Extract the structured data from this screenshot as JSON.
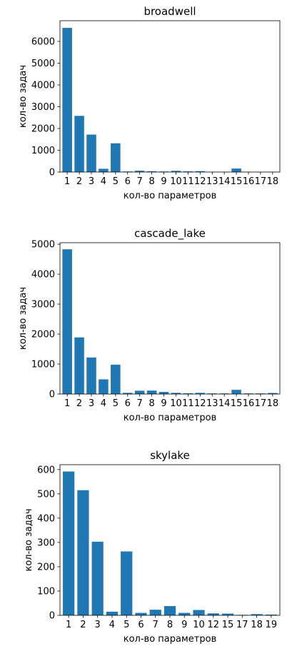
{
  "chart_data": [
    {
      "type": "bar",
      "title": "broadwell",
      "xlabel": "кол-во параметров",
      "ylabel": "кол-во задач",
      "ylim": [
        0,
        6950
      ],
      "yticks": [
        0,
        1000,
        2000,
        3000,
        4000,
        5000,
        6000
      ],
      "categories": [
        "1",
        "2",
        "3",
        "4",
        "5",
        "6",
        "7",
        "8",
        "9",
        "10",
        "11",
        "12",
        "13",
        "14",
        "15",
        "16",
        "17",
        "18"
      ],
      "values": [
        6620,
        2580,
        1720,
        150,
        1320,
        25,
        60,
        35,
        25,
        55,
        30,
        40,
        5,
        5,
        160,
        5,
        5,
        5
      ],
      "color": "#1f77b4",
      "grid": false
    },
    {
      "type": "bar",
      "title": "cascade_lake",
      "xlabel": "кол-во параметров",
      "ylabel": "кол-во задач",
      "ylim": [
        0,
        5050
      ],
      "yticks": [
        0,
        1000,
        2000,
        3000,
        4000,
        5000
      ],
      "categories": [
        "1",
        "2",
        "3",
        "4",
        "5",
        "6",
        "7",
        "8",
        "9",
        "10",
        "11",
        "12",
        "13",
        "14",
        "15",
        "16",
        "17",
        "18"
      ],
      "values": [
        4830,
        1890,
        1220,
        490,
        980,
        40,
        110,
        115,
        70,
        40,
        25,
        40,
        20,
        20,
        140,
        20,
        20,
        35
      ],
      "color": "#1f77b4",
      "grid": false
    },
    {
      "type": "bar",
      "title": "skylake",
      "xlabel": "кол-во параметров",
      "ylabel": "кол-во задач",
      "ylim": [
        0,
        620
      ],
      "yticks": [
        0,
        100,
        200,
        300,
        400,
        500,
        600
      ],
      "categories": [
        "1",
        "2",
        "3",
        "4",
        "5",
        "6",
        "7",
        "8",
        "9",
        "10",
        "12",
        "15",
        "17",
        "18",
        "19"
      ],
      "values": [
        592,
        515,
        303,
        15,
        263,
        10,
        23,
        38,
        10,
        22,
        8,
        7,
        2,
        5,
        3
      ],
      "color": "#1f77b4",
      "grid": false
    }
  ]
}
